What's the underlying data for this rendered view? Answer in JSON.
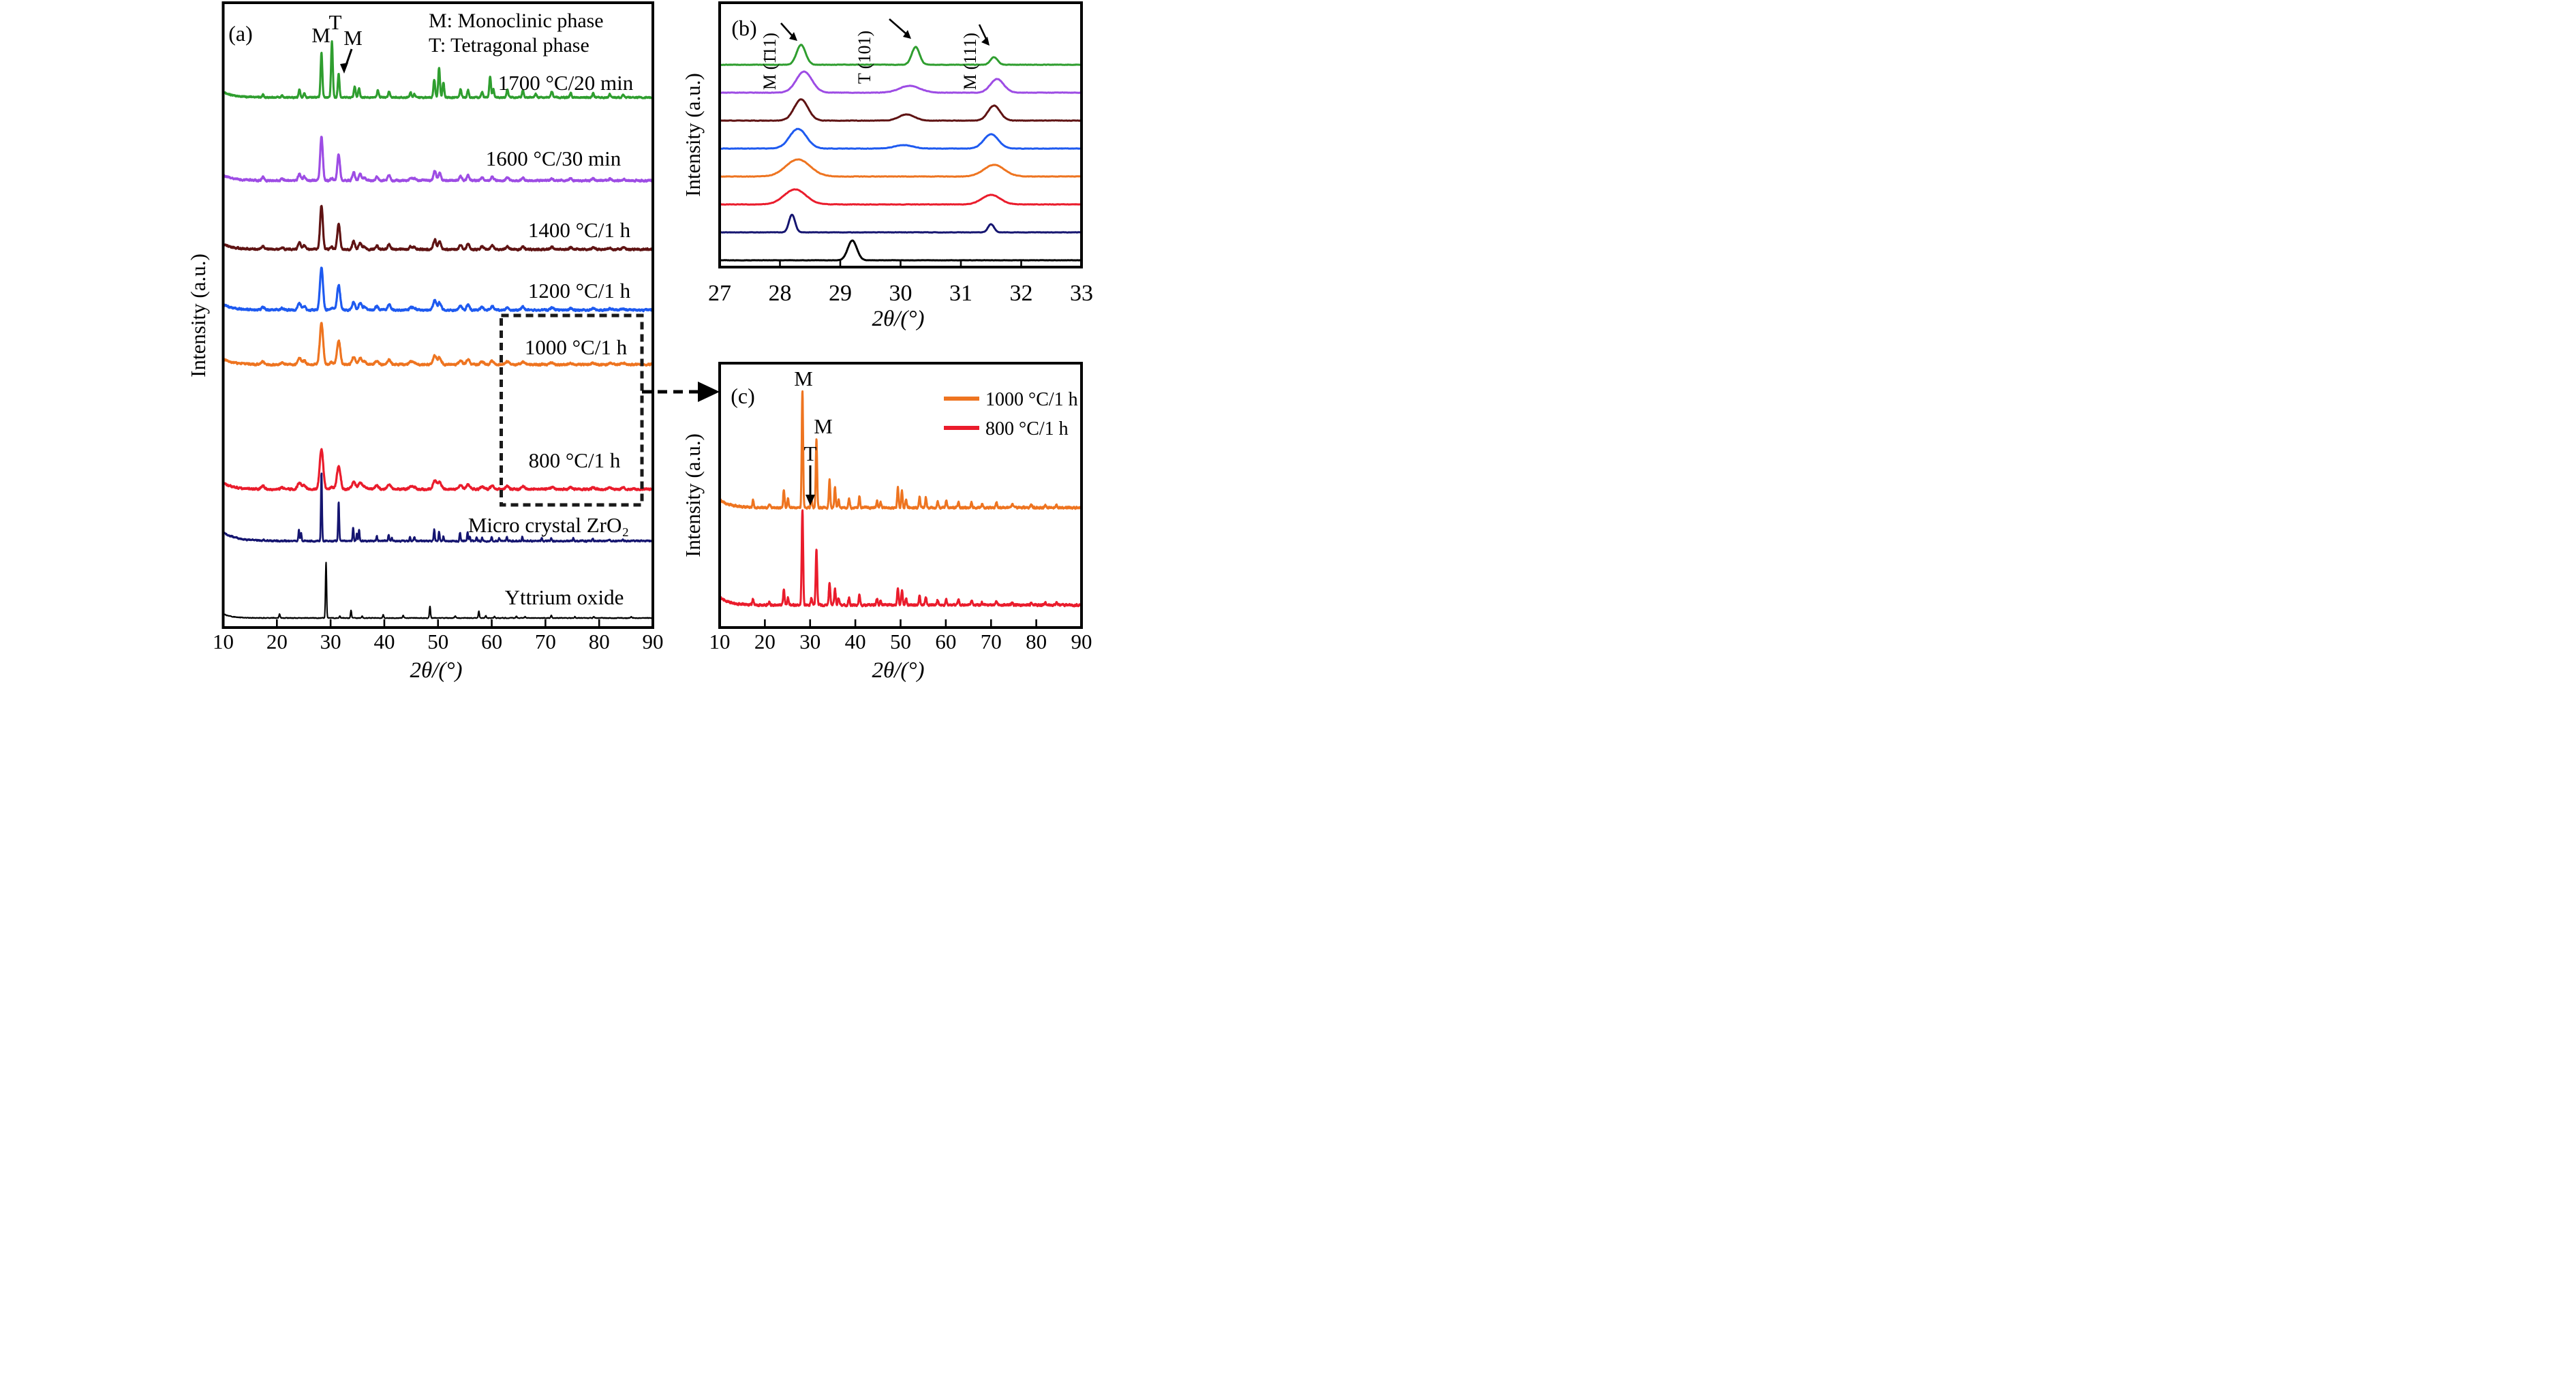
{
  "figure": {
    "background": "#ffffff",
    "panel_tags": [
      "(a)",
      "(b)",
      "(c)"
    ]
  },
  "chart_data": {
    "type": "line",
    "panels": {
      "a": {
        "tag": "(a)",
        "xlabel": "2θ/(°)",
        "ylabel": "Intensity (a.u.)",
        "xlim": [
          10,
          90
        ],
        "xticks": [
          10,
          20,
          30,
          40,
          50,
          60,
          70,
          80,
          90
        ],
        "grid": false,
        "legend_note": [
          "M: Monoclinic phase",
          "T: Tetragonal phase"
        ],
        "peak_marks": {
          "m1": "M",
          "t": "T",
          "m2": "M"
        },
        "series": [
          {
            "name": "1700C-20min",
            "label": "1700 °C/20 min",
            "color": "#2f9e2f",
            "baseline": 143,
            "pattern": "zr1700",
            "scale": 1,
            "sigma_mul": 1,
            "noise": 1.6,
            "start": [
              8,
              2.0
            ],
            "stroke": 3.1,
            "label_pos": [
              830,
              121
            ]
          },
          {
            "name": "1600C-30min",
            "label": "1600 °C/30 min",
            "color": "#9d4ce4",
            "baseline": 265,
            "pattern": "zrnano",
            "scale": 1.13,
            "sigma_mul": 0.8,
            "noise": 2.0,
            "start": [
              8,
              2.0
            ],
            "stroke": 3.2,
            "label_pos": [
              812,
              232
            ]
          },
          {
            "name": "1400C-1h",
            "label": "1400 °C/1 h",
            "color": "#5f1313",
            "baseline": 366,
            "pattern": "zrnano",
            "scale": 1.1,
            "sigma_mul": 0.85,
            "noise": 2.0,
            "start": [
              8,
              2.0
            ],
            "stroke": 3.2,
            "label_pos": [
              850,
              337
            ]
          },
          {
            "name": "1200C-1h",
            "label": "1200 °C/1 h",
            "color": "#1e5af0",
            "baseline": 455,
            "pattern": "zrnano",
            "scale": 1.07,
            "sigma_mul": 0.95,
            "noise": 2.1,
            "start": [
              8,
              2.0
            ],
            "stroke": 3.2,
            "label_pos": [
              850,
              426
            ]
          },
          {
            "name": "1000C-1h",
            "label": "1000 °C/1 h",
            "color": "#ee7420",
            "baseline": 535,
            "pattern": "zrnano",
            "scale": 1.03,
            "sigma_mul": 1.03,
            "noise": 2.1,
            "start": [
              8,
              2.0
            ],
            "stroke": 3.2,
            "label_pos": [
              845,
              509
            ]
          },
          {
            "name": "800C-1h",
            "label": "800 °C/1 h",
            "color": "#ea1c2c",
            "baseline": 718,
            "pattern": "zrnano",
            "scale": 1.0,
            "sigma_mul": 1.1,
            "noise": 2.1,
            "start": [
              9,
              2.0
            ],
            "stroke": 3.2,
            "label_pos": [
              843,
              675
            ]
          },
          {
            "name": "micro-ZrO2",
            "label": "Micro crystal ZrO₂",
            "color": "#151570",
            "baseline": 794,
            "pattern": "zrmicro",
            "scale": 1,
            "sigma_mul": 1,
            "noise": 1.7,
            "start": [
              13,
              2.4
            ],
            "stroke": 2.7,
            "label_pos": [
              805,
              770
            ]
          },
          {
            "name": "yttrium-oxide",
            "label": "Yttrium oxide",
            "color": "#000000",
            "baseline": 907,
            "pattern": "y2o3",
            "scale": 1,
            "sigma_mul": 1,
            "noise": 0.8,
            "start": [
              6,
              1.6
            ],
            "stroke": 2.1,
            "label_pos": [
              828,
              876
            ]
          }
        ]
      },
      "b": {
        "tag": "(b)",
        "xlabel": "2θ/(°)",
        "ylabel": "Intensity (a.u.)",
        "xlim": [
          27,
          33
        ],
        "xticks": [
          27,
          28,
          29,
          30,
          31,
          32,
          33
        ],
        "grid": false,
        "peak_labels": [
          "M (1̄11)",
          "T (101)",
          "M (111)"
        ],
        "series": [
          {
            "name": "1700C",
            "color": "#2f9e2f",
            "baseline": 95,
            "peaks": [
              [
                28.35,
                29,
                0.075
              ],
              [
                30.25,
                26,
                0.065
              ],
              [
                31.55,
                11,
                0.06
              ]
            ],
            "noise": 0.5
          },
          {
            "name": "1600C",
            "color": "#9d4ce4",
            "baseline": 136,
            "peaks": [
              [
                28.4,
                31,
                0.13
              ],
              [
                30.15,
                10,
                0.17
              ],
              [
                31.6,
                20,
                0.11
              ]
            ],
            "noise": 0.5
          },
          {
            "name": "1400C",
            "color": "#5f1313",
            "baseline": 177,
            "peaks": [
              [
                28.35,
                31,
                0.115
              ],
              [
                30.1,
                9,
                0.13
              ],
              [
                31.55,
                22,
                0.1
              ]
            ],
            "noise": 0.5
          },
          {
            "name": "1200C",
            "color": "#1e5af0",
            "baseline": 218,
            "peaks": [
              [
                28.3,
                29,
                0.14
              ],
              [
                30.05,
                5,
                0.15
              ],
              [
                31.5,
                21,
                0.12
              ]
            ],
            "noise": 0.5
          },
          {
            "name": "1000C",
            "color": "#ee7420",
            "baseline": 259,
            "peaks": [
              [
                28.3,
                25,
                0.2
              ],
              [
                31.55,
                17,
                0.17
              ]
            ],
            "noise": 0.5
          },
          {
            "name": "800C",
            "color": "#ea1c2c",
            "baseline": 300,
            "peaks": [
              [
                28.25,
                22,
                0.18
              ],
              [
                31.5,
                14,
                0.15
              ]
            ],
            "noise": 0.5
          },
          {
            "name": "micro-ZrO2",
            "color": "#151570",
            "baseline": 341,
            "peaks": [
              [
                28.2,
                26,
                0.05
              ],
              [
                31.5,
                12,
                0.05
              ]
            ],
            "noise": 0.4
          },
          {
            "name": "yttrium-oxide",
            "color": "#000000",
            "baseline": 382,
            "peaks": [
              [
                29.2,
                29,
                0.075
              ]
            ],
            "noise": 0.3
          }
        ]
      },
      "c": {
        "tag": "(c)",
        "xlabel": "2θ/(°)",
        "ylabel": "Intensity (a.u.)",
        "xlim": [
          10,
          90
        ],
        "xticks": [
          10,
          20,
          30,
          40,
          50,
          60,
          70,
          80,
          90
        ],
        "grid": false,
        "peak_marks": {
          "m1": "M",
          "m2": "M",
          "t": "T"
        },
        "series": [
          {
            "name": "1000C-1h",
            "label": "1000 °C/1 h",
            "color": "#ee7420",
            "baseline": 745,
            "pattern": "zrC",
            "scale": 1,
            "sigma_mul": 1,
            "noise": 2.4,
            "start": [
              12,
              2.2
            ],
            "stroke": 3.0
          },
          {
            "name": "800C-1h",
            "label": "800 °C/1 h",
            "color": "#ea1c2c",
            "baseline": 888,
            "pattern": "zrC",
            "scale": 0.82,
            "sigma_mul": 1.05,
            "noise": 2.4,
            "start": [
              12,
              2.2
            ],
            "stroke": 3.0
          }
        ]
      }
    },
    "patterns": {
      "zrnano": {
        "sigma": 0.3,
        "peaks": [
          [
            17.4,
            4
          ],
          [
            21,
            2.5
          ],
          [
            24.2,
            9
          ],
          [
            25.1,
            5
          ],
          [
            28.3,
            58
          ],
          [
            30.2,
            3
          ],
          [
            31.5,
            34
          ],
          [
            34.3,
            11
          ],
          [
            35.5,
            9
          ],
          [
            36.3,
            4
          ],
          [
            38.6,
            5
          ],
          [
            40.9,
            7
          ],
          [
            44.9,
            4
          ],
          [
            45.6,
            3
          ],
          [
            49.4,
            13
          ],
          [
            50.3,
            10
          ],
          [
            54.2,
            6
          ],
          [
            55.6,
            7
          ],
          [
            58.2,
            4
          ],
          [
            60.1,
            5
          ],
          [
            62.9,
            4
          ],
          [
            65.8,
            4
          ],
          [
            71.2,
            3
          ],
          [
            74.7,
            2.5
          ],
          [
            78.9,
            2.5
          ],
          [
            82,
            2
          ],
          [
            84.5,
            2
          ]
        ]
      },
      "zr1700": {
        "sigma": 0.16,
        "peaks": [
          [
            17.4,
            4
          ],
          [
            21,
            3
          ],
          [
            24.2,
            12
          ],
          [
            25.1,
            6
          ],
          [
            28.3,
            66
          ],
          [
            30.25,
            82
          ],
          [
            31.5,
            34
          ],
          [
            34.5,
            16
          ],
          [
            35.3,
            14
          ],
          [
            38.8,
            10
          ],
          [
            40.9,
            9
          ],
          [
            44.9,
            7
          ],
          [
            45.6,
            5
          ],
          [
            49.3,
            26
          ],
          [
            50.2,
            44
          ],
          [
            51,
            22
          ],
          [
            54.2,
            12
          ],
          [
            55.6,
            11
          ],
          [
            58.2,
            8
          ],
          [
            59.7,
            30
          ],
          [
            60.3,
            12
          ],
          [
            62.9,
            12
          ],
          [
            65.8,
            10
          ],
          [
            68.2,
            5
          ],
          [
            71.2,
            9
          ],
          [
            74.7,
            6
          ],
          [
            78.9,
            6
          ],
          [
            82,
            5
          ],
          [
            84.5,
            4
          ]
        ]
      },
      "zrmicro": {
        "sigma": 0.1,
        "peaks": [
          [
            17.5,
            2
          ],
          [
            24.1,
            16
          ],
          [
            24.5,
            12
          ],
          [
            28.3,
            100
          ],
          [
            31.5,
            58
          ],
          [
            34.2,
            20
          ],
          [
            34.9,
            10
          ],
          [
            35.3,
            16
          ],
          [
            38.6,
            7
          ],
          [
            40.8,
            9
          ],
          [
            41.4,
            5
          ],
          [
            44.8,
            6
          ],
          [
            45.6,
            5
          ],
          [
            49.3,
            17
          ],
          [
            50.2,
            14
          ],
          [
            51,
            7
          ],
          [
            54.1,
            12
          ],
          [
            55.5,
            13
          ],
          [
            55.9,
            7
          ],
          [
            57.2,
            5
          ],
          [
            58.2,
            5
          ],
          [
            60,
            6
          ],
          [
            61.4,
            4
          ],
          [
            62.8,
            6
          ],
          [
            65.7,
            6
          ],
          [
            69.3,
            4
          ],
          [
            71.1,
            5
          ],
          [
            75.2,
            4
          ],
          [
            78.8,
            4
          ],
          [
            82,
            3
          ],
          [
            84.4,
            3
          ]
        ]
      },
      "y2o3": {
        "sigma": 0.1,
        "peaks": [
          [
            20.5,
            6
          ],
          [
            29.15,
            82
          ],
          [
            31.7,
            3
          ],
          [
            33.8,
            11
          ],
          [
            35.9,
            3
          ],
          [
            39.8,
            5
          ],
          [
            43.5,
            4
          ],
          [
            48.5,
            17
          ],
          [
            53.2,
            3
          ],
          [
            57.6,
            10
          ],
          [
            58.9,
            3
          ],
          [
            60.5,
            2
          ],
          [
            64.6,
            3
          ],
          [
            66.2,
            2
          ],
          [
            71.1,
            4
          ],
          [
            75.5,
            2
          ],
          [
            79,
            2
          ],
          [
            86,
            1.5
          ]
        ]
      },
      "zrC": {
        "sigma": 0.15,
        "peaks": [
          [
            17.4,
            10
          ],
          [
            21,
            5
          ],
          [
            24.2,
            27
          ],
          [
            25.1,
            13
          ],
          [
            28.3,
            171
          ],
          [
            30.3,
            13
          ],
          [
            31.4,
            100
          ],
          [
            34.3,
            40
          ],
          [
            35.5,
            30
          ],
          [
            36.3,
            12
          ],
          [
            38.6,
            13
          ],
          [
            40.9,
            17
          ],
          [
            44.8,
            11
          ],
          [
            45.6,
            8
          ],
          [
            49.4,
            30
          ],
          [
            50.3,
            26
          ],
          [
            51.2,
            12
          ],
          [
            54.2,
            16
          ],
          [
            55.6,
            15
          ],
          [
            58.2,
            9
          ],
          [
            60.1,
            10
          ],
          [
            62.8,
            9
          ],
          [
            65.7,
            8
          ],
          [
            68,
            5
          ],
          [
            71.2,
            8
          ],
          [
            74.7,
            5
          ],
          [
            78.9,
            5
          ],
          [
            82,
            4
          ],
          [
            84.5,
            4
          ]
        ]
      }
    }
  }
}
